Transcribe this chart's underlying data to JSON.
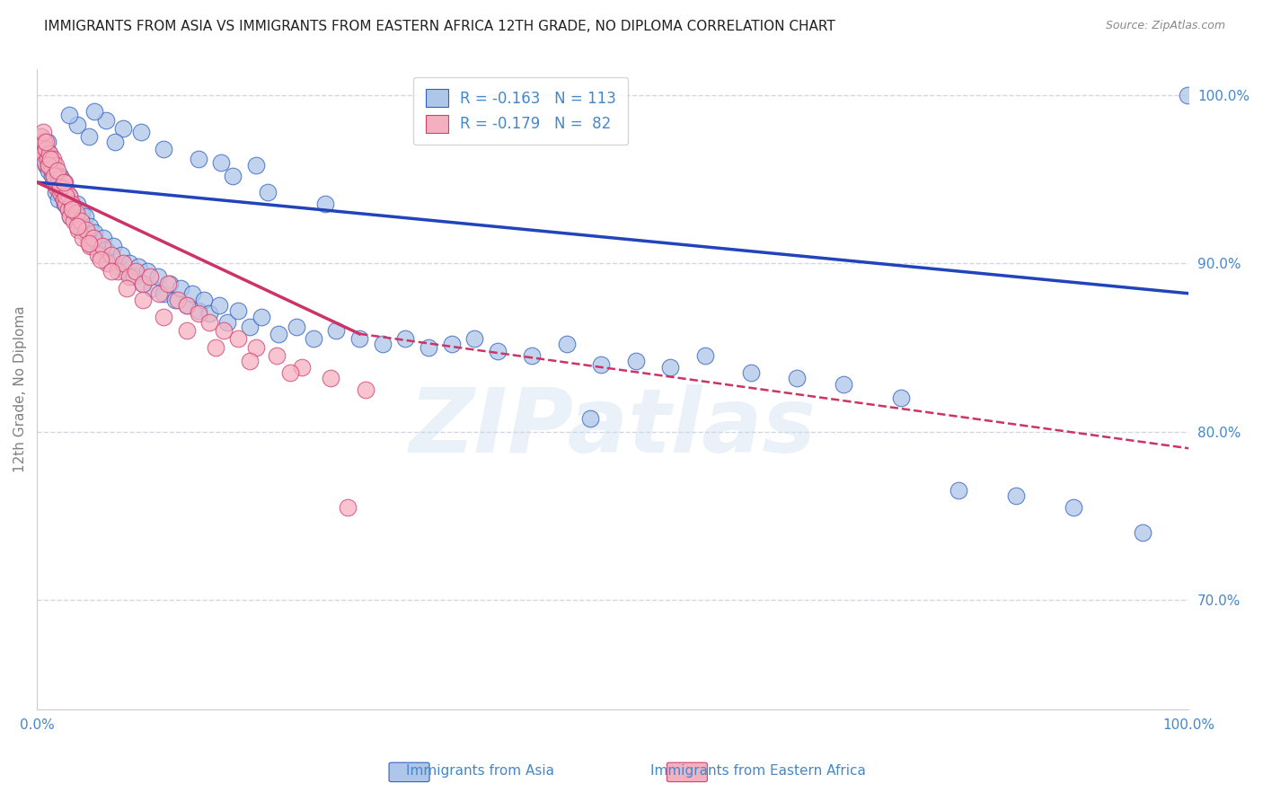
{
  "title": "IMMIGRANTS FROM ASIA VS IMMIGRANTS FROM EASTERN AFRICA 12TH GRADE, NO DIPLOMA CORRELATION CHART",
  "source": "Source: ZipAtlas.com",
  "ylabel": "12th Grade, No Diploma",
  "legend_blue_r": "R = -0.163",
  "legend_blue_n": "N = 113",
  "legend_pink_r": "R = -0.179",
  "legend_pink_n": "N =  82",
  "watermark": "ZIPatlas",
  "xlim": [
    0.0,
    1.0
  ],
  "ylim": [
    0.635,
    1.015
  ],
  "yticks": [
    0.7,
    0.8,
    0.9,
    1.0
  ],
  "ytick_labels": [
    "70.0%",
    "80.0%",
    "90.0%",
    "100.0%"
  ],
  "xticks": [
    0.0,
    0.1,
    0.2,
    0.3,
    0.4,
    0.5,
    0.6,
    0.7,
    0.8,
    0.9,
    1.0
  ],
  "blue_color": "#aec6e8",
  "blue_edge_color": "#3060c0",
  "pink_color": "#f5b0c0",
  "pink_edge_color": "#d04070",
  "blue_line_color": "#2244bb",
  "pink_line_color": "#cc3366",
  "axis_color": "#4488cc",
  "grid_color": "#d0d8e8",
  "background_color": "#ffffff",
  "blue_line_y0": 0.948,
  "blue_line_y1": 0.882,
  "pink_line_x_solid_end": 0.28,
  "pink_line_y0": 0.948,
  "pink_line_y_solid_end": 0.858,
  "pink_line_y_dashed_end": 0.79,
  "blue_scatter_x": [
    0.003,
    0.004,
    0.005,
    0.006,
    0.007,
    0.008,
    0.009,
    0.01,
    0.01,
    0.011,
    0.012,
    0.013,
    0.014,
    0.015,
    0.015,
    0.016,
    0.017,
    0.018,
    0.019,
    0.02,
    0.021,
    0.022,
    0.023,
    0.024,
    0.025,
    0.026,
    0.027,
    0.028,
    0.029,
    0.03,
    0.032,
    0.034,
    0.035,
    0.037,
    0.039,
    0.04,
    0.042,
    0.044,
    0.046,
    0.048,
    0.05,
    0.052,
    0.055,
    0.058,
    0.06,
    0.063,
    0.066,
    0.07,
    0.073,
    0.076,
    0.08,
    0.084,
    0.088,
    0.092,
    0.096,
    0.1,
    0.105,
    0.11,
    0.115,
    0.12,
    0.125,
    0.13,
    0.135,
    0.14,
    0.145,
    0.15,
    0.158,
    0.165,
    0.175,
    0.185,
    0.195,
    0.21,
    0.225,
    0.24,
    0.26,
    0.28,
    0.3,
    0.32,
    0.34,
    0.36,
    0.38,
    0.4,
    0.43,
    0.46,
    0.49,
    0.52,
    0.55,
    0.58,
    0.62,
    0.66,
    0.7,
    0.75,
    0.8,
    0.85,
    0.9,
    0.96,
    0.2,
    0.25,
    0.16,
    0.17,
    0.06,
    0.075,
    0.09,
    0.05,
    0.035,
    0.028,
    0.045,
    0.068,
    0.11,
    0.14,
    0.19,
    0.48,
    0.999
  ],
  "blue_scatter_y": [
    0.968,
    0.975,
    0.962,
    0.97,
    0.965,
    0.958,
    0.972,
    0.96,
    0.955,
    0.965,
    0.958,
    0.952,
    0.96,
    0.948,
    0.955,
    0.942,
    0.95,
    0.945,
    0.938,
    0.952,
    0.945,
    0.94,
    0.948,
    0.935,
    0.942,
    0.938,
    0.932,
    0.94,
    0.928,
    0.935,
    0.93,
    0.925,
    0.935,
    0.922,
    0.93,
    0.92,
    0.928,
    0.915,
    0.922,
    0.91,
    0.918,
    0.912,
    0.905,
    0.915,
    0.908,
    0.9,
    0.91,
    0.898,
    0.905,
    0.895,
    0.9,
    0.892,
    0.898,
    0.888,
    0.895,
    0.885,
    0.892,
    0.882,
    0.888,
    0.878,
    0.885,
    0.875,
    0.882,
    0.872,
    0.878,
    0.87,
    0.875,
    0.865,
    0.872,
    0.862,
    0.868,
    0.858,
    0.862,
    0.855,
    0.86,
    0.855,
    0.852,
    0.855,
    0.85,
    0.852,
    0.855,
    0.848,
    0.845,
    0.852,
    0.84,
    0.842,
    0.838,
    0.845,
    0.835,
    0.832,
    0.828,
    0.82,
    0.765,
    0.762,
    0.755,
    0.74,
    0.942,
    0.935,
    0.96,
    0.952,
    0.985,
    0.98,
    0.978,
    0.99,
    0.982,
    0.988,
    0.975,
    0.972,
    0.968,
    0.962,
    0.958,
    0.808,
    1.0
  ],
  "pink_scatter_x": [
    0.002,
    0.003,
    0.004,
    0.005,
    0.006,
    0.007,
    0.008,
    0.009,
    0.01,
    0.011,
    0.012,
    0.013,
    0.014,
    0.015,
    0.016,
    0.017,
    0.018,
    0.019,
    0.02,
    0.021,
    0.022,
    0.023,
    0.024,
    0.025,
    0.026,
    0.027,
    0.028,
    0.029,
    0.03,
    0.032,
    0.034,
    0.036,
    0.038,
    0.04,
    0.043,
    0.046,
    0.049,
    0.053,
    0.057,
    0.061,
    0.065,
    0.07,
    0.075,
    0.08,
    0.086,
    0.092,
    0.098,
    0.106,
    0.114,
    0.122,
    0.13,
    0.14,
    0.15,
    0.162,
    0.175,
    0.19,
    0.208,
    0.23,
    0.255,
    0.285,
    0.01,
    0.015,
    0.02,
    0.025,
    0.03,
    0.005,
    0.008,
    0.012,
    0.018,
    0.023,
    0.035,
    0.045,
    0.055,
    0.065,
    0.078,
    0.092,
    0.11,
    0.13,
    0.155,
    0.185,
    0.22,
    0.27
  ],
  "pink_scatter_y": [
    0.968,
    0.975,
    0.97,
    0.965,
    0.972,
    0.96,
    0.968,
    0.962,
    0.958,
    0.965,
    0.96,
    0.955,
    0.962,
    0.95,
    0.958,
    0.945,
    0.952,
    0.948,
    0.942,
    0.95,
    0.945,
    0.938,
    0.948,
    0.935,
    0.942,
    0.932,
    0.94,
    0.928,
    0.935,
    0.925,
    0.93,
    0.92,
    0.925,
    0.915,
    0.92,
    0.91,
    0.915,
    0.905,
    0.91,
    0.9,
    0.905,
    0.895,
    0.9,
    0.892,
    0.895,
    0.888,
    0.892,
    0.882,
    0.888,
    0.878,
    0.875,
    0.87,
    0.865,
    0.86,
    0.855,
    0.85,
    0.845,
    0.838,
    0.832,
    0.825,
    0.958,
    0.952,
    0.945,
    0.94,
    0.932,
    0.978,
    0.972,
    0.962,
    0.955,
    0.948,
    0.922,
    0.912,
    0.902,
    0.895,
    0.885,
    0.878,
    0.868,
    0.86,
    0.85,
    0.842,
    0.835,
    0.755
  ]
}
